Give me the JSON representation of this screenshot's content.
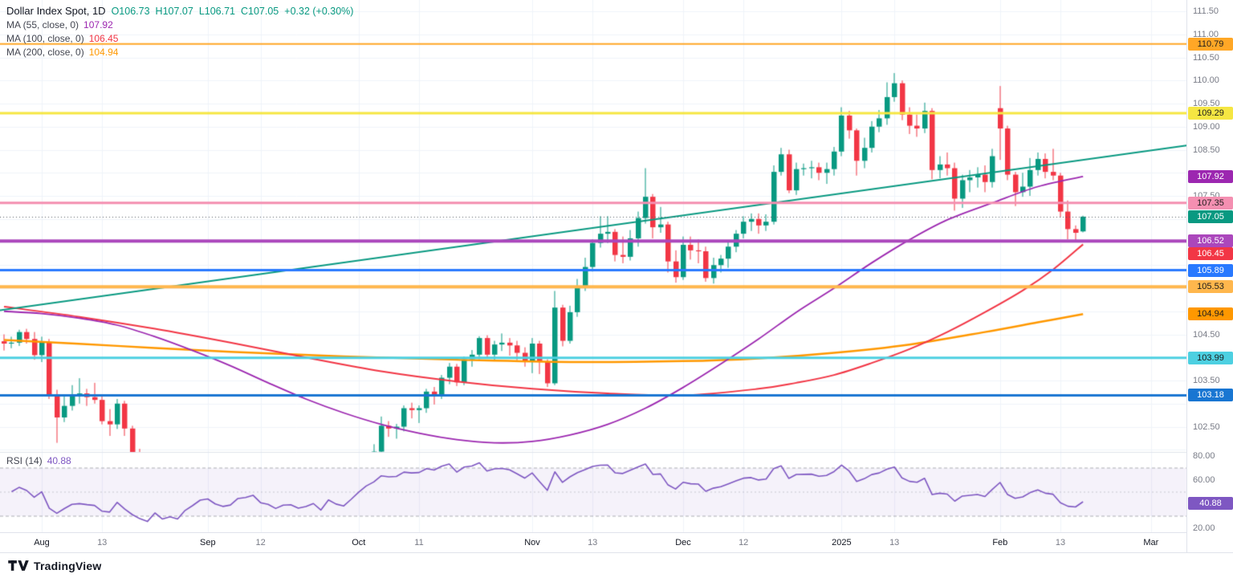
{
  "legend": {
    "title": "Dollar Index Spot, 1D",
    "ohlc": {
      "open": "O106.73",
      "high": "H107.07",
      "low": "L106.71",
      "close": "C107.05",
      "change": "+0.32 (+0.30%)",
      "color": "#089981"
    },
    "mas": [
      {
        "label": "MA (55, close, 0)",
        "value": "107.92",
        "color": "#9c27b0"
      },
      {
        "label": "MA (100, close, 0)",
        "value": "106.45",
        "color": "#f23645"
      },
      {
        "label": "MA (200, close, 0)",
        "value": "104.94",
        "color": "#ff9800"
      }
    ]
  },
  "rsi_legend": {
    "label": "RSI (14)",
    "value": "40.88",
    "color": "#7e57c2"
  },
  "footer": {
    "brand": "TradingView"
  },
  "chart_data": {
    "type": "candlestick",
    "symbol": "Dollar Index Spot",
    "interval": "1D",
    "colors": {
      "up": "#089981",
      "down": "#f23645",
      "grid": "#f0f3fa",
      "separator": "#e0e3eb",
      "axis_text": "#787b86",
      "trendline": "#089981",
      "rsi_line": "#7e57c2",
      "rsi_band_fill": "rgba(126,87,194,0.08)",
      "last_price_line": "#555a64"
    },
    "price_axis": {
      "visible_min": 101.98,
      "visible_max": 111.75,
      "labels": [
        "111.50",
        "111.00",
        "110.50",
        "110.00",
        "109.50",
        "109.00",
        "108.50",
        "107.50",
        "104.50",
        "103.50",
        "102.50"
      ]
    },
    "candles": [
      [
        104.35,
        104.5,
        104.15,
        104.3
      ],
      [
        104.3,
        104.45,
        104.2,
        104.32
      ],
      [
        104.32,
        104.6,
        104.25,
        104.55
      ],
      [
        104.55,
        104.62,
        104.3,
        104.4
      ],
      [
        104.4,
        104.55,
        103.95,
        104.05
      ],
      [
        104.05,
        104.45,
        103.9,
        104.32
      ],
      [
        104.32,
        104.4,
        103.1,
        103.2
      ],
      [
        103.2,
        103.3,
        102.15,
        102.7
      ],
      [
        102.7,
        103.2,
        102.6,
        102.95
      ],
      [
        102.95,
        103.4,
        102.85,
        103.18
      ],
      [
        103.18,
        103.55,
        103.0,
        103.22
      ],
      [
        103.22,
        103.32,
        102.95,
        103.14
      ],
      [
        103.14,
        103.45,
        103.0,
        103.08
      ],
      [
        103.08,
        103.2,
        102.55,
        102.62
      ],
      [
        102.62,
        102.88,
        102.3,
        102.55
      ],
      [
        102.55,
        103.1,
        102.45,
        103.0
      ],
      [
        103.0,
        103.06,
        102.3,
        102.46
      ],
      [
        102.46,
        102.52,
        101.85,
        101.92
      ],
      [
        101.92,
        102.02,
        101.3,
        101.44
      ],
      [
        101.44,
        101.62,
        100.92,
        101.06
      ],
      [
        101.06,
        101.62,
        100.9,
        101.5
      ],
      [
        101.5,
        101.56,
        100.6,
        100.72
      ],
      [
        100.72,
        100.98,
        100.52,
        100.84
      ],
      [
        100.84,
        100.96,
        100.5,
        100.56
      ],
      [
        100.56,
        101.12,
        100.5,
        101.04
      ],
      [
        101.04,
        101.42,
        100.94,
        101.34
      ],
      [
        101.34,
        101.76,
        101.2,
        101.7
      ],
      [
        101.7,
        101.92,
        101.58,
        101.78
      ],
      [
        101.78,
        101.84,
        101.24,
        101.34
      ],
      [
        101.34,
        101.42,
        100.94,
        101.1
      ],
      [
        101.1,
        101.4,
        100.86,
        101.18
      ],
      [
        101.18,
        101.7,
        101.1,
        101.58
      ],
      [
        101.58,
        101.76,
        101.44,
        101.64
      ],
      [
        101.64,
        101.86,
        101.3,
        101.78
      ],
      [
        101.78,
        101.86,
        101.14,
        101.22
      ],
      [
        101.22,
        101.32,
        100.86,
        101.08
      ],
      [
        101.08,
        101.16,
        100.6,
        100.72
      ],
      [
        100.72,
        101.02,
        100.56,
        100.9
      ],
      [
        100.9,
        101.46,
        100.2,
        100.92
      ],
      [
        100.92,
        101.16,
        100.44,
        100.64
      ],
      [
        100.64,
        100.86,
        100.4,
        100.72
      ],
      [
        100.72,
        101.02,
        100.6,
        100.86
      ],
      [
        100.86,
        100.92,
        100.24,
        100.36
      ],
      [
        100.36,
        100.96,
        100.3,
        100.88
      ],
      [
        100.88,
        100.94,
        100.4,
        100.56
      ],
      [
        100.56,
        100.66,
        100.14,
        100.4
      ],
      [
        100.4,
        100.82,
        100.14,
        100.76
      ],
      [
        100.76,
        101.26,
        100.7,
        101.2
      ],
      [
        101.2,
        101.76,
        101.14,
        101.64
      ],
      [
        101.64,
        102.12,
        101.54,
        101.96
      ],
      [
        101.96,
        102.72,
        101.86,
        102.52
      ],
      [
        102.52,
        102.62,
        102.28,
        102.46
      ],
      [
        102.46,
        102.56,
        102.24,
        102.5
      ],
      [
        102.5,
        102.96,
        102.4,
        102.9
      ],
      [
        102.9,
        103.02,
        102.68,
        102.86
      ],
      [
        102.86,
        102.96,
        102.58,
        102.9
      ],
      [
        102.9,
        103.32,
        102.8,
        103.26
      ],
      [
        103.26,
        103.36,
        102.98,
        103.2
      ],
      [
        103.2,
        103.62,
        103.1,
        103.56
      ],
      [
        103.56,
        103.88,
        103.42,
        103.8
      ],
      [
        103.8,
        103.86,
        103.38,
        103.46
      ],
      [
        103.46,
        104.02,
        103.4,
        103.96
      ],
      [
        103.96,
        104.16,
        103.8,
        104.06
      ],
      [
        104.06,
        104.46,
        103.96,
        104.42
      ],
      [
        104.42,
        104.48,
        104.0,
        104.06
      ],
      [
        104.06,
        104.36,
        103.94,
        104.28
      ],
      [
        104.28,
        104.52,
        104.14,
        104.32
      ],
      [
        104.32,
        104.42,
        104.04,
        104.26
      ],
      [
        104.26,
        104.36,
        103.94,
        104.1
      ],
      [
        104.1,
        104.22,
        103.8,
        103.92
      ],
      [
        103.92,
        104.42,
        103.66,
        104.3
      ],
      [
        104.3,
        104.36,
        103.64,
        103.9
      ],
      [
        103.9,
        103.96,
        103.36,
        103.44
      ],
      [
        103.44,
        105.44,
        103.4,
        105.08
      ],
      [
        105.08,
        105.14,
        104.24,
        104.36
      ],
      [
        104.36,
        105.12,
        104.3,
        104.98
      ],
      [
        104.98,
        105.7,
        104.88,
        105.54
      ],
      [
        105.54,
        106.16,
        105.44,
        105.96
      ],
      [
        105.96,
        106.56,
        105.86,
        106.48
      ],
      [
        106.48,
        107.06,
        106.38,
        106.68
      ],
      [
        106.68,
        107.06,
        106.48,
        106.72
      ],
      [
        106.72,
        106.78,
        106.08,
        106.22
      ],
      [
        106.22,
        106.62,
        106.04,
        106.18
      ],
      [
        106.18,
        106.76,
        106.1,
        106.58
      ],
      [
        106.58,
        107.16,
        106.4,
        107.02
      ],
      [
        107.02,
        108.1,
        106.9,
        107.48
      ],
      [
        107.48,
        107.54,
        106.58,
        106.82
      ],
      [
        106.82,
        107.26,
        106.7,
        106.88
      ],
      [
        106.88,
        106.94,
        105.84,
        106.08
      ],
      [
        106.08,
        106.32,
        105.62,
        105.74
      ],
      [
        105.74,
        106.62,
        105.68,
        106.44
      ],
      [
        106.44,
        106.62,
        106.12,
        106.32
      ],
      [
        106.32,
        106.56,
        106.04,
        106.3
      ],
      [
        106.3,
        106.4,
        105.64,
        105.72
      ],
      [
        105.72,
        106.16,
        105.6,
        106.0
      ],
      [
        106.0,
        106.22,
        105.84,
        106.14
      ],
      [
        106.14,
        106.52,
        105.94,
        106.4
      ],
      [
        106.4,
        106.76,
        106.28,
        106.68
      ],
      [
        106.68,
        107.06,
        106.58,
        106.94
      ],
      [
        106.94,
        107.12,
        106.74,
        107.0
      ],
      [
        107.0,
        107.12,
        106.68,
        106.86
      ],
      [
        106.86,
        107.1,
        106.74,
        106.94
      ],
      [
        106.94,
        108.16,
        106.88,
        108.02
      ],
      [
        108.02,
        108.54,
        107.94,
        108.4
      ],
      [
        108.4,
        108.5,
        107.56,
        107.62
      ],
      [
        107.62,
        108.22,
        107.52,
        108.08
      ],
      [
        108.08,
        108.2,
        107.94,
        108.1
      ],
      [
        108.1,
        108.26,
        107.88,
        108.12
      ],
      [
        108.12,
        108.22,
        107.84,
        108.0
      ],
      [
        108.0,
        108.22,
        107.76,
        108.08
      ],
      [
        108.08,
        108.56,
        107.94,
        108.46
      ],
      [
        108.46,
        109.42,
        108.36,
        109.24
      ],
      [
        109.24,
        109.34,
        108.74,
        108.92
      ],
      [
        108.92,
        108.96,
        107.94,
        108.26
      ],
      [
        108.26,
        108.76,
        108.1,
        108.54
      ],
      [
        108.54,
        109.12,
        108.44,
        109.0
      ],
      [
        109.0,
        109.36,
        108.88,
        109.18
      ],
      [
        109.18,
        109.96,
        109.04,
        109.64
      ],
      [
        109.64,
        110.16,
        109.54,
        109.94
      ],
      [
        109.94,
        110.0,
        109.14,
        109.26
      ],
      [
        109.26,
        109.42,
        108.84,
        109.02
      ],
      [
        109.02,
        109.26,
        108.78,
        108.96
      ],
      [
        108.96,
        109.52,
        108.86,
        109.34
      ],
      [
        109.34,
        109.4,
        107.86,
        108.06
      ],
      [
        108.06,
        108.36,
        107.88,
        108.18
      ],
      [
        108.18,
        108.44,
        107.94,
        108.1
      ],
      [
        108.1,
        108.22,
        107.18,
        107.44
      ],
      [
        107.44,
        107.96,
        107.24,
        107.84
      ],
      [
        107.84,
        108.06,
        107.58,
        107.9
      ],
      [
        107.9,
        108.12,
        107.68,
        107.96
      ],
      [
        107.96,
        108.16,
        107.58,
        107.8
      ],
      [
        107.8,
        108.52,
        107.68,
        108.36
      ],
      [
        109.4,
        109.88,
        108.28,
        108.96
      ],
      [
        108.96,
        109.02,
        107.84,
        107.96
      ],
      [
        107.96,
        108.02,
        107.28,
        107.58
      ],
      [
        107.58,
        108.0,
        107.48,
        107.7
      ],
      [
        107.7,
        108.32,
        107.5,
        108.06
      ],
      [
        108.06,
        108.44,
        107.94,
        108.3
      ],
      [
        108.3,
        108.42,
        107.88,
        108.02
      ],
      [
        108.02,
        108.52,
        107.84,
        107.94
      ],
      [
        107.94,
        108.0,
        107.04,
        107.16
      ],
      [
        107.16,
        107.4,
        106.56,
        106.78
      ],
      [
        106.78,
        106.86,
        106.52,
        106.7
      ],
      [
        106.73,
        107.07,
        106.71,
        107.05
      ]
    ],
    "x_ticks": [
      {
        "i": 5,
        "label": "Aug",
        "major": true
      },
      {
        "i": 13,
        "label": "13",
        "major": false
      },
      {
        "i": 27,
        "label": "Sep",
        "major": true
      },
      {
        "i": 34,
        "label": "12",
        "major": false
      },
      {
        "i": 47,
        "label": "Oct",
        "major": true
      },
      {
        "i": 55,
        "label": "11",
        "major": false
      },
      {
        "i": 70,
        "label": "Nov",
        "major": true
      },
      {
        "i": 78,
        "label": "13",
        "major": false
      },
      {
        "i": 90,
        "label": "Dec",
        "major": true
      },
      {
        "i": 98,
        "label": "12",
        "major": false
      },
      {
        "i": 111,
        "label": "2025",
        "major": true
      },
      {
        "i": 118,
        "label": "13",
        "major": false
      },
      {
        "i": 132,
        "label": "Feb",
        "major": true
      },
      {
        "i": 140,
        "label": "13",
        "major": false
      },
      {
        "i": 152,
        "label": "Mar",
        "major": true
      }
    ],
    "ma55_points": [
      [
        0,
        105.0
      ],
      [
        5,
        104.95
      ],
      [
        10,
        104.85
      ],
      [
        15,
        104.7
      ],
      [
        20,
        104.45
      ],
      [
        25,
        104.15
      ],
      [
        30,
        103.82
      ],
      [
        35,
        103.45
      ],
      [
        40,
        103.1
      ],
      [
        45,
        102.8
      ],
      [
        50,
        102.55
      ],
      [
        55,
        102.36
      ],
      [
        60,
        102.22
      ],
      [
        65,
        102.15
      ],
      [
        70,
        102.18
      ],
      [
        75,
        102.32
      ],
      [
        80,
        102.55
      ],
      [
        85,
        102.9
      ],
      [
        90,
        103.35
      ],
      [
        95,
        103.86
      ],
      [
        100,
        104.4
      ],
      [
        105,
        104.98
      ],
      [
        110,
        105.5
      ],
      [
        115,
        106.05
      ],
      [
        120,
        106.55
      ],
      [
        125,
        106.98
      ],
      [
        131,
        107.35
      ],
      [
        137,
        107.7
      ],
      [
        143,
        107.92
      ]
    ],
    "ma100_points": [
      [
        0,
        105.1
      ],
      [
        10,
        104.88
      ],
      [
        20,
        104.62
      ],
      [
        30,
        104.32
      ],
      [
        40,
        104.0
      ],
      [
        50,
        103.7
      ],
      [
        60,
        103.48
      ],
      [
        70,
        103.32
      ],
      [
        80,
        103.22
      ],
      [
        90,
        103.18
      ],
      [
        100,
        103.32
      ],
      [
        105,
        103.45
      ],
      [
        110,
        103.62
      ],
      [
        115,
        103.88
      ],
      [
        120,
        104.18
      ],
      [
        125,
        104.55
      ],
      [
        130,
        104.98
      ],
      [
        135,
        105.45
      ],
      [
        139,
        105.9
      ],
      [
        143,
        106.45
      ]
    ],
    "ma200_points": [
      [
        0,
        104.38
      ],
      [
        15,
        104.25
      ],
      [
        30,
        104.12
      ],
      [
        45,
        104.02
      ],
      [
        60,
        103.95
      ],
      [
        75,
        103.9
      ],
      [
        90,
        103.92
      ],
      [
        100,
        103.98
      ],
      [
        110,
        104.1
      ],
      [
        120,
        104.28
      ],
      [
        130,
        104.55
      ],
      [
        137,
        104.76
      ],
      [
        143,
        104.94
      ]
    ],
    "trendline": {
      "points": [
        [
          -5,
          104.92
        ],
        [
          158,
          108.62
        ]
      ],
      "color": "#089981",
      "width": 2
    },
    "levels": [
      {
        "label": "110.79",
        "price": 110.79,
        "color": "#ffa726",
        "text": "#1c1c1c",
        "width": 2
      },
      {
        "label": "109.29",
        "price": 109.29,
        "color": "#f5e642",
        "text": "#1c1c1c",
        "width": 3
      },
      {
        "label": "107.35",
        "price": 107.35,
        "color": "#f48fb1",
        "text": "#1c1c1c",
        "width": 3
      },
      {
        "label": "106.52",
        "price": 106.52,
        "color": "#ab47bc",
        "text": "#ffffff",
        "width": 4
      },
      {
        "label": "105.89",
        "price": 105.89,
        "color": "#2979ff",
        "text": "#ffffff",
        "width": 3
      },
      {
        "label": "105.53",
        "price": 105.53,
        "color": "#ffb74d",
        "text": "#1c1c1c",
        "width": 4
      },
      {
        "label": "103.99",
        "price": 103.99,
        "color": "#4dd0e1",
        "text": "#1c1c1c",
        "width": 3
      },
      {
        "label": "103.18",
        "price": 103.18,
        "color": "#1976d2",
        "text": "#ffffff",
        "width": 3
      }
    ],
    "ma_badges": [
      {
        "label": "107.92",
        "price": 107.92,
        "color": "#9c27b0",
        "text": "#ffffff",
        "dy": 0
      },
      {
        "label": "106.45",
        "price": 106.45,
        "color": "#f23645",
        "text": "#ffffff",
        "dy": 12
      },
      {
        "label": "104.94",
        "price": 104.94,
        "color": "#ff9800",
        "text": "#1c1c1c",
        "dy": 0
      }
    ],
    "last_price": {
      "label": "107.05",
      "price": 107.05,
      "color": "#089981",
      "text": "#ffffff"
    },
    "rsi": {
      "period": 14,
      "value": 40.88,
      "badge_label": "40.88",
      "upper_band": 70,
      "middle_band": 50,
      "lower_band": 30,
      "axis_labels": [
        "80.00",
        "60.00",
        "20.00"
      ]
    }
  }
}
